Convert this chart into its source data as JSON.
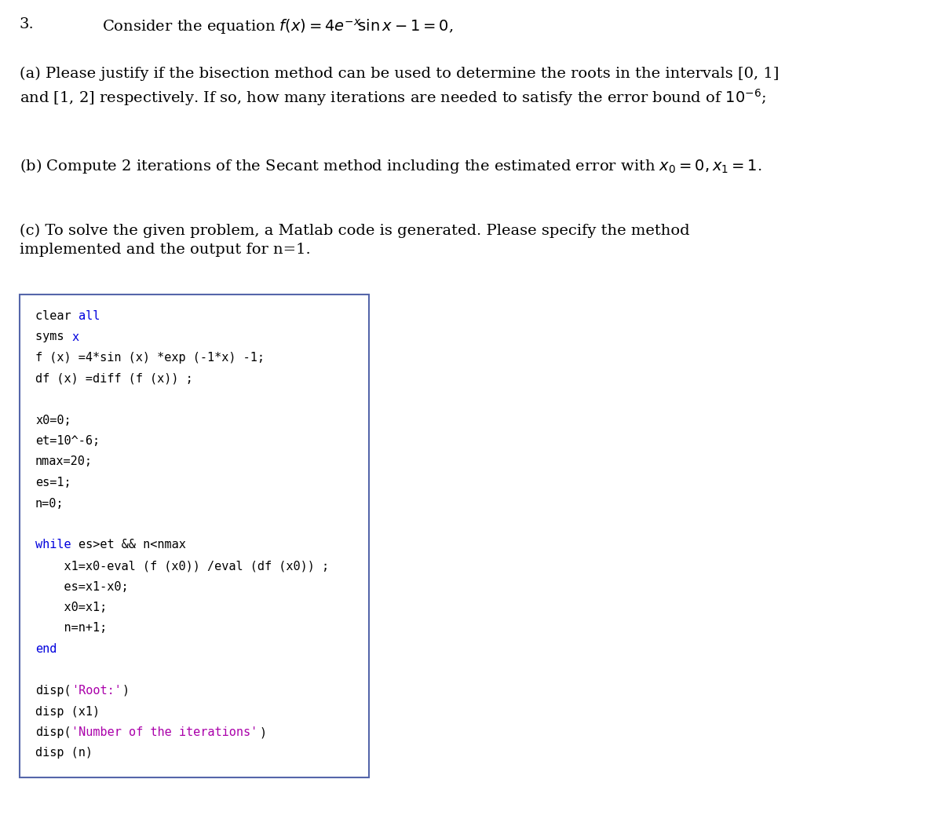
{
  "bg_color": "#ffffff",
  "fig_width": 12.0,
  "fig_height": 10.62,
  "question_number": "3.",
  "title_text": "Consider the equation $f(x) = 4e^{-x}\\!\\sin x - 1 = 0$,",
  "part_a": "(a) Please justify if the bisection method can be used to determine the roots in the intervals [0, 1]\nand [1, 2] respectively. If so, how many iterations are needed to satisfy the error bound of $10^{-6}$;",
  "part_b": "(b) Compute 2 iterations of the Secant method including the estimated error with $x_0 = 0, x_1 = 1$.",
  "part_c": "(c) To solve the given problem, a Matlab code is generated. Please specify the method\nimplemented and the output for n=1.",
  "code_lines": [
    {
      "segments": [
        {
          "txt": "clear ",
          "color": "#000000"
        },
        {
          "txt": "all",
          "color": "#0000dd"
        }
      ]
    },
    {
      "segments": [
        {
          "txt": "syms ",
          "color": "#000000"
        },
        {
          "txt": "x",
          "color": "#0000dd"
        }
      ]
    },
    {
      "segments": [
        {
          "txt": "f (x) =4*sin (x) *exp (-1*x) -1;",
          "color": "#000000"
        }
      ]
    },
    {
      "segments": [
        {
          "txt": "df (x) =diff (f (x)) ;",
          "color": "#000000"
        }
      ]
    },
    {
      "segments": []
    },
    {
      "segments": [
        {
          "txt": "x0=0;",
          "color": "#000000"
        }
      ]
    },
    {
      "segments": [
        {
          "txt": "et=10^-6;",
          "color": "#000000"
        }
      ]
    },
    {
      "segments": [
        {
          "txt": "nmax=20;",
          "color": "#000000"
        }
      ]
    },
    {
      "segments": [
        {
          "txt": "es=1;",
          "color": "#000000"
        }
      ]
    },
    {
      "segments": [
        {
          "txt": "n=0;",
          "color": "#000000"
        }
      ]
    },
    {
      "segments": []
    },
    {
      "segments": [
        {
          "txt": "while ",
          "color": "#0000dd"
        },
        {
          "txt": "es>et && n<nmax",
          "color": "#000000"
        }
      ]
    },
    {
      "segments": [
        {
          "txt": "    x1=x0-eval (f (x0)) /eval (df (x0)) ;",
          "color": "#000000"
        }
      ]
    },
    {
      "segments": [
        {
          "txt": "    es=x1-x0;",
          "color": "#000000"
        }
      ]
    },
    {
      "segments": [
        {
          "txt": "    x0=x1;",
          "color": "#000000"
        }
      ]
    },
    {
      "segments": [
        {
          "txt": "    n=n+1;",
          "color": "#000000"
        }
      ]
    },
    {
      "segments": [
        {
          "txt": "end",
          "color": "#0000dd"
        }
      ]
    },
    {
      "segments": []
    },
    {
      "segments": [
        {
          "txt": "disp(",
          "color": "#000000"
        },
        {
          "txt": "'Root:'",
          "color": "#aa00aa"
        },
        {
          "txt": ")",
          "color": "#000000"
        }
      ]
    },
    {
      "segments": [
        {
          "txt": "disp (x1)",
          "color": "#000000"
        }
      ]
    },
    {
      "segments": [
        {
          "txt": "disp(",
          "color": "#000000"
        },
        {
          "txt": "'Number of the iterations'",
          "color": "#aa00aa"
        },
        {
          "txt": ")",
          "color": "#000000"
        }
      ]
    },
    {
      "segments": [
        {
          "txt": "disp (n)",
          "color": "#000000"
        }
      ]
    }
  ],
  "text_font_size": 14,
  "title_font_size": 14,
  "code_font_size": 11,
  "serif_font": "DejaVu Serif",
  "mono_font": "DejaVu Sans Mono",
  "box_color": "#5566aa"
}
